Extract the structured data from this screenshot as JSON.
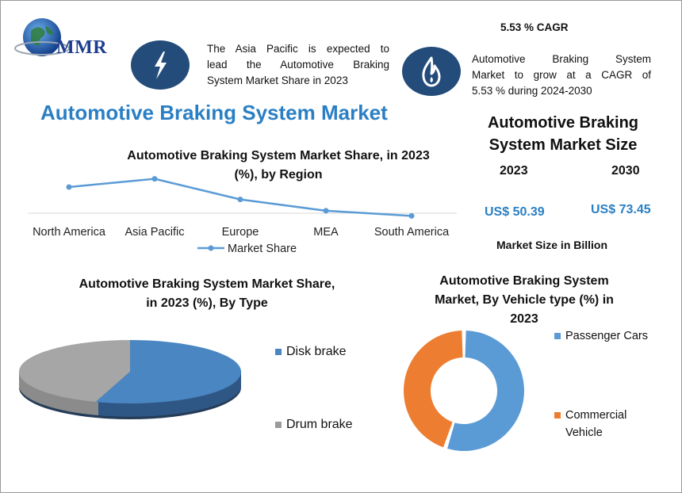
{
  "logo": {
    "text": "MMR"
  },
  "info_left": {
    "icon": "lightning-icon",
    "text_lines": [
      "The Asia Pacific is expected to",
      "lead the Automotive Braking",
      "System Market Share in 2023"
    ]
  },
  "info_right": {
    "icon": "flame-icon",
    "heading": "5.53 % CAGR",
    "text_lines": [
      "Automotive Braking System",
      "Market to grow at a CAGR of",
      "5.53 % during 2024-2030"
    ]
  },
  "main_title": "Automotive Braking System Market",
  "market_size": {
    "title_lines": [
      "Automotive Braking",
      "System Market Size"
    ],
    "year_a": "2023",
    "year_b": "2030",
    "value_a": "US$ 50.39",
    "value_b": "US$ 73.45",
    "note": "Market Size in Billion"
  },
  "colors": {
    "title_blue": "#2a7fc4",
    "line": "#5b9bd5",
    "donut_blue": "#5b9bd5",
    "donut_orange": "#ed7d31",
    "pie_blue": "#4a86c2",
    "pie_gray": "#9b9b9b",
    "icon_bg": "#234c7a"
  },
  "chart_data": [
    {
      "type": "line",
      "title_lines": [
        "Automotive Braking System Market Share, in 2023",
        "(%), by Region"
      ],
      "categories": [
        "North America",
        "Asia Pacific",
        "Europe",
        "MEA",
        "South America"
      ],
      "series": [
        {
          "name": "Market Share",
          "values": [
            30,
            38,
            18,
            7,
            2
          ]
        }
      ],
      "ylim": [
        0,
        40
      ],
      "legend": "bottom"
    },
    {
      "type": "pie",
      "title_lines": [
        "Automotive Braking System Market Share,",
        "in 2023 (%), By Type"
      ],
      "labels": [
        "Disk brake",
        "Drum brake"
      ],
      "values": [
        55,
        45
      ],
      "legend": "right"
    },
    {
      "type": "pie",
      "title_lines": [
        "Automotive Braking System",
        "Market, By Vehicle type (%) in",
        "2023"
      ],
      "labels": [
        "Passenger Cars",
        "Commercial Vehicle"
      ],
      "legend_lines": [
        [
          "Passenger Cars"
        ],
        [
          "Commercial",
          "Vehicle"
        ]
      ],
      "values": [
        55,
        45
      ],
      "legend": "right"
    }
  ]
}
